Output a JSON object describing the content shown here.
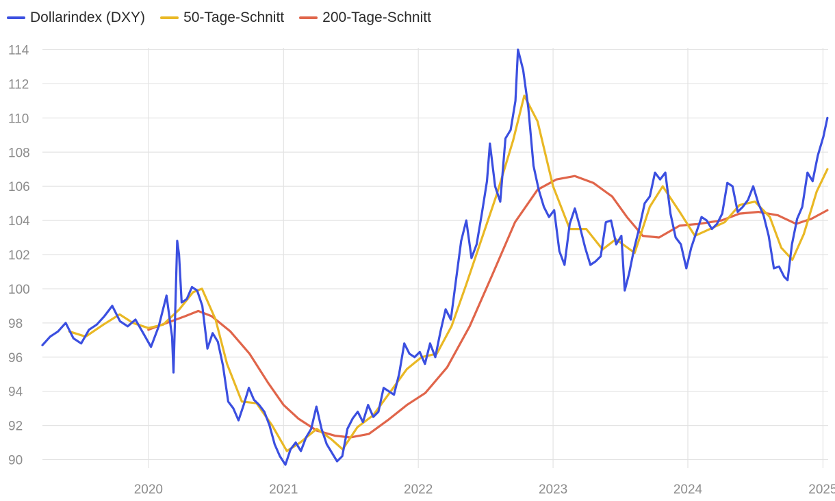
{
  "colors": {
    "dxy": "#3b4fe0",
    "ma50": "#e9b824",
    "ma200": "#e0654a",
    "grid": "#e3e3e3",
    "tick_text": "#8c8c8c"
  },
  "legend": [
    {
      "key": "dxy",
      "label": "Dollarindex (DXY)"
    },
    {
      "key": "ma50",
      "label": "50-Tage-Schnitt"
    },
    {
      "key": "ma200",
      "label": "200-Tage-Schnitt"
    }
  ],
  "chart_data": {
    "type": "line",
    "title": "",
    "xlabel": "",
    "ylabel": "",
    "x_ticks": [
      "2020",
      "2021",
      "2022",
      "2023",
      "2024",
      "2025"
    ],
    "y_ticks": [
      90,
      92,
      94,
      96,
      98,
      100,
      102,
      104,
      106,
      108,
      110,
      112,
      114
    ],
    "xlim": [
      "2019-03-20",
      "2025-01-15"
    ],
    "ylim": [
      89.5,
      114.1
    ],
    "grid": true,
    "legend_position": "top-left",
    "series": [
      {
        "key": "dxy",
        "name": "Dollarindex (DXY)",
        "points": [
          [
            "2019-03-20",
            96.7
          ],
          [
            "2019-04-10",
            97.2
          ],
          [
            "2019-05-01",
            97.5
          ],
          [
            "2019-05-22",
            98.0
          ],
          [
            "2019-06-12",
            97.1
          ],
          [
            "2019-07-03",
            96.8
          ],
          [
            "2019-07-24",
            97.6
          ],
          [
            "2019-08-14",
            97.9
          ],
          [
            "2019-09-04",
            98.4
          ],
          [
            "2019-09-25",
            99.0
          ],
          [
            "2019-10-16",
            98.1
          ],
          [
            "2019-11-06",
            97.8
          ],
          [
            "2019-11-27",
            98.2
          ],
          [
            "2019-12-18",
            97.4
          ],
          [
            "2020-01-08",
            96.6
          ],
          [
            "2020-01-29",
            97.8
          ],
          [
            "2020-02-19",
            99.6
          ],
          [
            "2020-03-05",
            97.2
          ],
          [
            "2020-03-09",
            95.1
          ],
          [
            "2020-03-13",
            98.2
          ],
          [
            "2020-03-19",
            102.8
          ],
          [
            "2020-03-24",
            102.0
          ],
          [
            "2020-03-31",
            99.2
          ],
          [
            "2020-04-14",
            99.4
          ],
          [
            "2020-04-28",
            100.1
          ],
          [
            "2020-05-12",
            99.9
          ],
          [
            "2020-05-26",
            99.0
          ],
          [
            "2020-06-09",
            96.5
          ],
          [
            "2020-06-23",
            97.4
          ],
          [
            "2020-07-07",
            96.9
          ],
          [
            "2020-07-21",
            95.5
          ],
          [
            "2020-08-04",
            93.4
          ],
          [
            "2020-08-18",
            93.0
          ],
          [
            "2020-09-01",
            92.3
          ],
          [
            "2020-09-15",
            93.2
          ],
          [
            "2020-09-29",
            94.2
          ],
          [
            "2020-10-13",
            93.5
          ],
          [
            "2020-10-27",
            93.2
          ],
          [
            "2020-11-10",
            92.8
          ],
          [
            "2020-11-24",
            92.0
          ],
          [
            "2020-12-08",
            90.9
          ],
          [
            "2020-12-22",
            90.2
          ],
          [
            "2021-01-06",
            89.7
          ],
          [
            "2021-01-20",
            90.6
          ],
          [
            "2021-02-03",
            91.0
          ],
          [
            "2021-02-17",
            90.5
          ],
          [
            "2021-03-03",
            91.3
          ],
          [
            "2021-03-17",
            91.8
          ],
          [
            "2021-03-31",
            93.1
          ],
          [
            "2021-04-14",
            91.8
          ],
          [
            "2021-04-28",
            90.9
          ],
          [
            "2021-05-12",
            90.4
          ],
          [
            "2021-05-26",
            89.9
          ],
          [
            "2021-06-09",
            90.2
          ],
          [
            "2021-06-23",
            91.8
          ],
          [
            "2021-07-07",
            92.4
          ],
          [
            "2021-07-21",
            92.8
          ],
          [
            "2021-08-04",
            92.2
          ],
          [
            "2021-08-18",
            93.2
          ],
          [
            "2021-09-01",
            92.5
          ],
          [
            "2021-09-15",
            92.8
          ],
          [
            "2021-09-29",
            94.2
          ],
          [
            "2021-10-13",
            94.0
          ],
          [
            "2021-10-27",
            93.8
          ],
          [
            "2021-11-10",
            95.0
          ],
          [
            "2021-11-24",
            96.8
          ],
          [
            "2021-12-08",
            96.2
          ],
          [
            "2021-12-22",
            96.0
          ],
          [
            "2022-01-05",
            96.3
          ],
          [
            "2022-01-19",
            95.6
          ],
          [
            "2022-02-02",
            96.8
          ],
          [
            "2022-02-16",
            96.0
          ],
          [
            "2022-03-02",
            97.5
          ],
          [
            "2022-03-16",
            98.8
          ],
          [
            "2022-03-30",
            98.2
          ],
          [
            "2022-04-13",
            100.5
          ],
          [
            "2022-04-27",
            102.8
          ],
          [
            "2022-05-11",
            104.0
          ],
          [
            "2022-05-25",
            101.8
          ],
          [
            "2022-06-08",
            102.6
          ],
          [
            "2022-06-22",
            104.4
          ],
          [
            "2022-07-06",
            106.3
          ],
          [
            "2022-07-14",
            108.5
          ],
          [
            "2022-07-28",
            106.0
          ],
          [
            "2022-08-11",
            105.1
          ],
          [
            "2022-08-25",
            108.8
          ],
          [
            "2022-09-08",
            109.3
          ],
          [
            "2022-09-21",
            111.0
          ],
          [
            "2022-09-28",
            114.0
          ],
          [
            "2022-10-12",
            112.8
          ],
          [
            "2022-10-26",
            110.6
          ],
          [
            "2022-11-09",
            107.2
          ],
          [
            "2022-11-23",
            105.8
          ],
          [
            "2022-12-07",
            104.8
          ],
          [
            "2022-12-21",
            104.2
          ],
          [
            "2023-01-04",
            104.6
          ],
          [
            "2023-01-18",
            102.2
          ],
          [
            "2023-02-01",
            101.4
          ],
          [
            "2023-02-15",
            103.8
          ],
          [
            "2023-03-01",
            104.7
          ],
          [
            "2023-03-15",
            103.6
          ],
          [
            "2023-03-29",
            102.4
          ],
          [
            "2023-04-12",
            101.4
          ],
          [
            "2023-04-26",
            101.6
          ],
          [
            "2023-05-10",
            101.9
          ],
          [
            "2023-05-24",
            103.9
          ],
          [
            "2023-06-07",
            104.0
          ],
          [
            "2023-06-21",
            102.6
          ],
          [
            "2023-07-05",
            103.1
          ],
          [
            "2023-07-14",
            99.9
          ],
          [
            "2023-07-26",
            100.9
          ],
          [
            "2023-08-09",
            102.4
          ],
          [
            "2023-08-23",
            103.6
          ],
          [
            "2023-09-06",
            105.0
          ],
          [
            "2023-09-20",
            105.4
          ],
          [
            "2023-10-04",
            106.8
          ],
          [
            "2023-10-18",
            106.4
          ],
          [
            "2023-11-01",
            106.8
          ],
          [
            "2023-11-15",
            104.4
          ],
          [
            "2023-11-29",
            103.0
          ],
          [
            "2023-12-13",
            102.6
          ],
          [
            "2023-12-28",
            101.2
          ],
          [
            "2024-01-10",
            102.4
          ],
          [
            "2024-01-24",
            103.3
          ],
          [
            "2024-02-07",
            104.2
          ],
          [
            "2024-02-21",
            104.0
          ],
          [
            "2024-03-06",
            103.5
          ],
          [
            "2024-03-20",
            103.8
          ],
          [
            "2024-04-03",
            104.4
          ],
          [
            "2024-04-17",
            106.2
          ],
          [
            "2024-05-01",
            106.0
          ],
          [
            "2024-05-15",
            104.5
          ],
          [
            "2024-05-29",
            104.8
          ],
          [
            "2024-06-12",
            105.2
          ],
          [
            "2024-06-26",
            106.0
          ],
          [
            "2024-07-10",
            105.0
          ],
          [
            "2024-07-24",
            104.3
          ],
          [
            "2024-08-07",
            103.1
          ],
          [
            "2024-08-21",
            101.2
          ],
          [
            "2024-09-04",
            101.3
          ],
          [
            "2024-09-18",
            100.7
          ],
          [
            "2024-09-27",
            100.5
          ],
          [
            "2024-10-09",
            102.6
          ],
          [
            "2024-10-23",
            104.1
          ],
          [
            "2024-11-06",
            104.8
          ],
          [
            "2024-11-20",
            106.8
          ],
          [
            "2024-12-04",
            106.3
          ],
          [
            "2024-12-18",
            107.8
          ],
          [
            "2025-01-02",
            108.9
          ],
          [
            "2025-01-13",
            110.0
          ]
        ]
      },
      {
        "key": "ma50",
        "name": "50-Tage-Schnitt",
        "points": [
          [
            "2019-06-01",
            97.5
          ],
          [
            "2019-07-15",
            97.2
          ],
          [
            "2019-09-01",
            97.9
          ],
          [
            "2019-10-15",
            98.5
          ],
          [
            "2019-11-20",
            98.0
          ],
          [
            "2020-01-01",
            97.7
          ],
          [
            "2020-02-10",
            97.9
          ],
          [
            "2020-03-25",
            98.8
          ],
          [
            "2020-05-01",
            99.8
          ],
          [
            "2020-05-25",
            100.0
          ],
          [
            "2020-07-01",
            98.2
          ],
          [
            "2020-08-01",
            95.6
          ],
          [
            "2020-09-10",
            93.4
          ],
          [
            "2020-10-20",
            93.3
          ],
          [
            "2020-12-01",
            92.0
          ],
          [
            "2021-01-10",
            90.5
          ],
          [
            "2021-02-15",
            91.0
          ],
          [
            "2021-04-01",
            91.8
          ],
          [
            "2021-05-10",
            91.2
          ],
          [
            "2021-06-10",
            90.6
          ],
          [
            "2021-07-20",
            91.9
          ],
          [
            "2021-09-01",
            92.6
          ],
          [
            "2021-10-15",
            93.9
          ],
          [
            "2021-12-01",
            95.3
          ],
          [
            "2022-01-10",
            96.0
          ],
          [
            "2022-02-20",
            96.2
          ],
          [
            "2022-04-01",
            97.8
          ],
          [
            "2022-05-10",
            100.2
          ],
          [
            "2022-06-15",
            102.5
          ],
          [
            "2022-08-01",
            105.5
          ],
          [
            "2022-09-15",
            108.7
          ],
          [
            "2022-10-15",
            111.3
          ],
          [
            "2022-11-20",
            109.8
          ],
          [
            "2023-01-01",
            106.0
          ],
          [
            "2023-02-15",
            103.5
          ],
          [
            "2023-04-01",
            103.5
          ],
          [
            "2023-05-15",
            102.3
          ],
          [
            "2023-06-20",
            102.9
          ],
          [
            "2023-08-10",
            102.1
          ],
          [
            "2023-09-20",
            104.8
          ],
          [
            "2023-10-25",
            106.0
          ],
          [
            "2023-12-10",
            104.5
          ],
          [
            "2024-01-20",
            103.1
          ],
          [
            "2024-03-01",
            103.5
          ],
          [
            "2024-04-10",
            103.9
          ],
          [
            "2024-05-20",
            104.9
          ],
          [
            "2024-07-01",
            105.1
          ],
          [
            "2024-08-10",
            104.2
          ],
          [
            "2024-09-10",
            102.4
          ],
          [
            "2024-10-10",
            101.7
          ],
          [
            "2024-11-10",
            103.2
          ],
          [
            "2024-12-15",
            105.7
          ],
          [
            "2025-01-13",
            107.0
          ]
        ]
      },
      {
        "key": "ma200",
        "name": "200-Tage-Schnitt",
        "points": [
          [
            "2020-01-01",
            97.6
          ],
          [
            "2020-02-20",
            98.0
          ],
          [
            "2020-04-10",
            98.4
          ],
          [
            "2020-05-15",
            98.7
          ],
          [
            "2020-06-20",
            98.4
          ],
          [
            "2020-08-10",
            97.5
          ],
          [
            "2020-10-01",
            96.2
          ],
          [
            "2020-11-20",
            94.5
          ],
          [
            "2021-01-01",
            93.2
          ],
          [
            "2021-02-10",
            92.4
          ],
          [
            "2021-04-01",
            91.7
          ],
          [
            "2021-05-20",
            91.4
          ],
          [
            "2021-07-01",
            91.3
          ],
          [
            "2021-08-20",
            91.5
          ],
          [
            "2021-10-10",
            92.3
          ],
          [
            "2021-12-01",
            93.2
          ],
          [
            "2022-01-20",
            93.9
          ],
          [
            "2022-03-20",
            95.4
          ],
          [
            "2022-05-20",
            97.8
          ],
          [
            "2022-07-20",
            100.8
          ],
          [
            "2022-09-20",
            103.9
          ],
          [
            "2022-11-20",
            105.8
          ],
          [
            "2023-01-10",
            106.4
          ],
          [
            "2023-03-01",
            106.6
          ],
          [
            "2023-04-20",
            106.2
          ],
          [
            "2023-06-10",
            105.4
          ],
          [
            "2023-07-20",
            104.2
          ],
          [
            "2023-09-01",
            103.1
          ],
          [
            "2023-10-15",
            103.0
          ],
          [
            "2023-12-10",
            103.7
          ],
          [
            "2024-02-01",
            103.8
          ],
          [
            "2024-04-01",
            104.0
          ],
          [
            "2024-05-20",
            104.4
          ],
          [
            "2024-07-10",
            104.5
          ],
          [
            "2024-09-01",
            104.3
          ],
          [
            "2024-10-20",
            103.8
          ],
          [
            "2024-12-01",
            104.1
          ],
          [
            "2025-01-13",
            104.6
          ]
        ]
      }
    ]
  }
}
